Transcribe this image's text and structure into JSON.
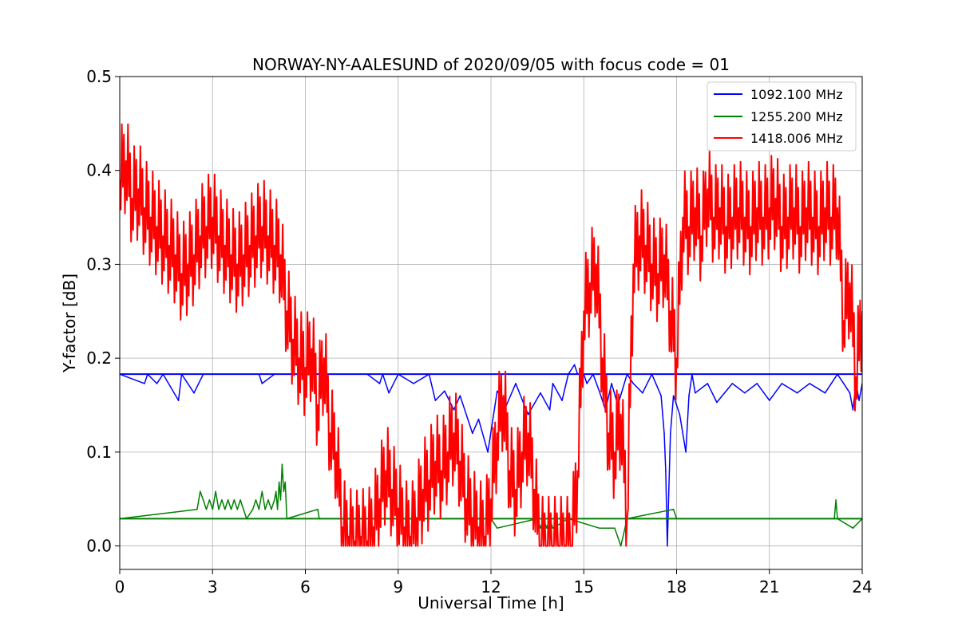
{
  "chart_data": {
    "type": "line",
    "title": "NORWAY-NY-AALESUND of 2020/09/05 with focus code = 01",
    "xlabel": "Universal Time [h]",
    "ylabel": "Y-factor [dB]",
    "xlim": [
      0,
      24
    ],
    "ylim": [
      -0.025,
      0.5
    ],
    "xticks": [
      0,
      3,
      6,
      9,
      12,
      15,
      18,
      21,
      24
    ],
    "xtick_labels": [
      "0",
      "3",
      "6",
      "9",
      "12",
      "15",
      "18",
      "21",
      "24"
    ],
    "yticks": [
      0.0,
      0.1,
      0.2,
      0.3,
      0.4,
      0.5
    ],
    "ytick_labels": [
      "0.0",
      "0.1",
      "0.2",
      "0.3",
      "0.4",
      "0.5"
    ],
    "grid": true,
    "legend_position": "top-right",
    "series": [
      {
        "name": "1092.100 MHz",
        "color": "#0000ff",
        "baseline": 0.183,
        "x": [
          0,
          0.8,
          0.9,
          1.2,
          1.4,
          1.9,
          2.0,
          2.4,
          2.7,
          3.2,
          4.5,
          4.6,
          5.0,
          5.4,
          7.0,
          7.2,
          8.0,
          8.4,
          8.5,
          8.7,
          9.0,
          9.5,
          10.0,
          10.2,
          10.5,
          10.8,
          11.0,
          11.4,
          11.6,
          11.9,
          12.2,
          12.5,
          12.8,
          13.2,
          13.6,
          13.9,
          14.0,
          14.3,
          14.5,
          14.7,
          14.8,
          15.0,
          15.1,
          15.3,
          15.5,
          15.7,
          15.9,
          16.1,
          16.4,
          16.6,
          16.9,
          17.2,
          17.5,
          17.6,
          17.65,
          17.7,
          17.75,
          17.8,
          17.9,
          18.1,
          18.3,
          18.4,
          18.5,
          18.6,
          19.0,
          19.3,
          19.8,
          20.2,
          20.6,
          21.0,
          21.4,
          21.9,
          22.3,
          22.8,
          23.2,
          23.4,
          23.6,
          23.7,
          23.8,
          23.9,
          24.0
        ],
        "y": [
          0.183,
          0.173,
          0.183,
          0.173,
          0.183,
          0.155,
          0.183,
          0.163,
          0.183,
          0.183,
          0.183,
          0.173,
          0.183,
          0.183,
          0.183,
          0.183,
          0.183,
          0.173,
          0.183,
          0.163,
          0.183,
          0.173,
          0.183,
          0.155,
          0.165,
          0.145,
          0.16,
          0.12,
          0.135,
          0.1,
          0.165,
          0.15,
          0.173,
          0.14,
          0.163,
          0.145,
          0.173,
          0.155,
          0.183,
          0.193,
          0.183,
          0.183,
          0.173,
          0.183,
          0.165,
          0.145,
          0.173,
          0.15,
          0.183,
          0.173,
          0.163,
          0.183,
          0.16,
          0.12,
          0.08,
          0.0,
          0.06,
          0.12,
          0.16,
          0.14,
          0.1,
          0.16,
          0.183,
          0.163,
          0.173,
          0.153,
          0.173,
          0.163,
          0.173,
          0.155,
          0.173,
          0.163,
          0.173,
          0.163,
          0.183,
          0.173,
          0.163,
          0.145,
          0.173,
          0.155,
          0.173
        ]
      },
      {
        "name": "1255.200 MHz",
        "color": "#008000",
        "baseline": 0.029,
        "x": [
          0,
          2.5,
          2.6,
          2.7,
          2.8,
          2.9,
          3.0,
          3.1,
          3.2,
          3.3,
          3.4,
          3.5,
          3.6,
          3.7,
          3.8,
          3.9,
          4.0,
          4.1,
          4.3,
          4.4,
          4.5,
          4.6,
          4.7,
          4.8,
          4.9,
          5.0,
          5.05,
          5.1,
          5.15,
          5.2,
          5.25,
          5.3,
          5.35,
          5.4,
          6.4,
          6.45,
          7.2,
          12.0,
          12.2,
          13.5,
          13.6,
          13.7,
          13.8,
          13.9,
          14.0,
          14.5,
          15.5,
          16.0,
          16.2,
          16.4,
          17.9,
          18.0,
          23.1,
          23.15,
          23.2,
          23.7,
          24.0
        ],
        "y": [
          0.029,
          0.039,
          0.058,
          0.049,
          0.039,
          0.049,
          0.039,
          0.058,
          0.039,
          0.049,
          0.039,
          0.049,
          0.039,
          0.049,
          0.039,
          0.049,
          0.039,
          0.029,
          0.039,
          0.049,
          0.039,
          0.058,
          0.039,
          0.049,
          0.039,
          0.049,
          0.058,
          0.039,
          0.068,
          0.049,
          0.087,
          0.058,
          0.068,
          0.029,
          0.039,
          0.029,
          0.029,
          0.029,
          0.019,
          0.029,
          0.019,
          0.029,
          0.019,
          0.029,
          0.019,
          0.029,
          0.019,
          0.019,
          0.0,
          0.029,
          0.039,
          0.029,
          0.029,
          0.049,
          0.029,
          0.019,
          0.029
        ]
      },
      {
        "name": "1418.006 MHz",
        "color": "#ff0000",
        "x": [
          0,
          0.2,
          0.4,
          0.6,
          0.8,
          1.0,
          1.2,
          1.4,
          1.6,
          1.8,
          2.0,
          2.2,
          2.4,
          2.6,
          2.8,
          3.0,
          3.2,
          3.4,
          3.6,
          3.8,
          4.0,
          4.2,
          4.4,
          4.6,
          4.8,
          5.0,
          5.2,
          5.4,
          5.6,
          5.8,
          6.0,
          6.2,
          6.4,
          6.6,
          6.8,
          7.0,
          7.2,
          7.4,
          7.6,
          7.8,
          8.0,
          8.2,
          8.4,
          8.6,
          8.8,
          9.0,
          9.2,
          9.4,
          9.6,
          9.8,
          10.0,
          10.2,
          10.4,
          10.6,
          10.8,
          11.0,
          11.2,
          11.4,
          11.6,
          11.8,
          12.0,
          12.2,
          12.4,
          12.6,
          12.8,
          13.0,
          13.2,
          13.4,
          13.6,
          13.8,
          14.0,
          14.2,
          14.4,
          14.6,
          14.8,
          15.0,
          15.2,
          15.4,
          15.6,
          15.8,
          16.0,
          16.2,
          16.4,
          16.6,
          16.8,
          17.0,
          17.2,
          17.4,
          17.6,
          17.8,
          18.0,
          18.2,
          18.4,
          18.6,
          18.8,
          19.0,
          19.2,
          19.4,
          19.6,
          19.8,
          20.0,
          20.2,
          20.4,
          20.6,
          20.8,
          21.0,
          21.2,
          21.4,
          21.6,
          21.8,
          22.0,
          22.2,
          22.4,
          22.6,
          22.8,
          23.0,
          23.2,
          23.4,
          23.6,
          23.8,
          24.0
        ],
        "y": [
          0.39,
          0.41,
          0.37,
          0.38,
          0.36,
          0.35,
          0.34,
          0.33,
          0.32,
          0.31,
          0.29,
          0.3,
          0.31,
          0.33,
          0.34,
          0.35,
          0.33,
          0.32,
          0.31,
          0.3,
          0.31,
          0.32,
          0.33,
          0.34,
          0.33,
          0.32,
          0.31,
          0.25,
          0.22,
          0.2,
          0.19,
          0.21,
          0.15,
          0.2,
          0.12,
          0.1,
          0.02,
          0.01,
          0.005,
          0.01,
          0.005,
          0.02,
          0.05,
          0.08,
          0.06,
          0.04,
          0.02,
          0.01,
          0.03,
          0.06,
          0.07,
          0.09,
          0.08,
          0.1,
          0.12,
          0.09,
          0.05,
          0.03,
          0.02,
          0.01,
          0.05,
          0.12,
          0.16,
          0.08,
          0.06,
          0.1,
          0.12,
          0.06,
          0.0,
          0.0,
          0.0,
          0.0,
          0.0,
          0.0,
          0.08,
          0.25,
          0.28,
          0.3,
          0.2,
          0.12,
          0.1,
          0.14,
          0.03,
          0.3,
          0.33,
          0.32,
          0.3,
          0.29,
          0.31,
          0.25,
          0.2,
          0.35,
          0.34,
          0.36,
          0.33,
          0.38,
          0.35,
          0.36,
          0.34,
          0.35,
          0.36,
          0.35,
          0.34,
          0.36,
          0.35,
          0.36,
          0.37,
          0.34,
          0.35,
          0.36,
          0.34,
          0.36,
          0.35,
          0.34,
          0.36,
          0.35,
          0.36,
          0.24,
          0.28,
          0.18,
          0.25
        ]
      }
    ]
  }
}
